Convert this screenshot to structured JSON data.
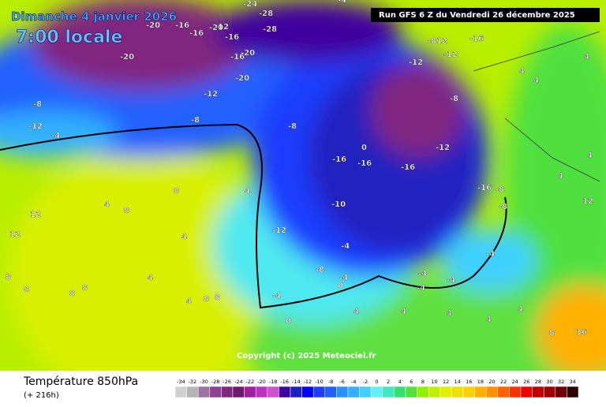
{
  "header": {
    "date": "Dimanche 4 janvier 2026",
    "time": "7:00 locale",
    "run": "Run GFS 6 Z du Vendredi 26 décembre 2025"
  },
  "copyright": "Copyright (c) 2025 Meteociel.fr",
  "footer": {
    "title": "Température 850hPa",
    "lead": "(+ 216h)"
  },
  "map_labels": [
    "-20",
    "-16",
    "-24",
    "-28",
    "-20",
    "-16",
    "-12",
    "-16",
    "-20",
    "-16",
    "-20",
    "-28",
    "-20",
    "-12",
    "-8",
    "-12",
    "-4",
    "-8",
    "-8",
    "-12",
    "-4",
    "-8",
    "-812",
    "-16",
    "-12",
    "0",
    "-16",
    "-16",
    "-16",
    "-12",
    "-16",
    "-8",
    "-8",
    "-10",
    "-12",
    "-4",
    "-4",
    "-8",
    "-4",
    "-4",
    "-4",
    "0",
    "4",
    "8",
    "4",
    "8",
    "12",
    "12",
    "8",
    "8",
    "4",
    "4",
    "8",
    "8",
    "4",
    "4",
    "4",
    "8",
    "12",
    "4",
    "4",
    "4",
    "4",
    "4",
    "4",
    "4",
    "8",
    "16",
    "-4",
    "-4",
    "0",
    "4",
    "8"
  ],
  "legend": {
    "ticks": [
      -34,
      -32,
      -30,
      -28,
      -26,
      -24,
      -22,
      -20,
      -18,
      -16,
      -14,
      -12,
      -10,
      -8,
      -6,
      -4,
      -2,
      0,
      2,
      4,
      6,
      8,
      10,
      12,
      14,
      16,
      18,
      20,
      22,
      24,
      26,
      28,
      30,
      32,
      34
    ],
    "colors": [
      "#d0d0d0",
      "#b4b4b4",
      "#a070a0",
      "#904090",
      "#802880",
      "#701870",
      "#a020a0",
      "#c030c0",
      "#d050d0",
      "#4000a0",
      "#2020c0",
      "#0000ff",
      "#1e3cff",
      "#2060ff",
      "#2890ff",
      "#30b0ff",
      "#40d0ff",
      "#60f0f0",
      "#40e8c0",
      "#30e070",
      "#50e040",
      "#90f000",
      "#c0f000",
      "#e0f000",
      "#f0e000",
      "#ffd000",
      "#ffb000",
      "#ff9000",
      "#ff6000",
      "#ff3000",
      "#f00000",
      "#c00000",
      "#a00000",
      "#700000",
      "#300000"
    ]
  }
}
